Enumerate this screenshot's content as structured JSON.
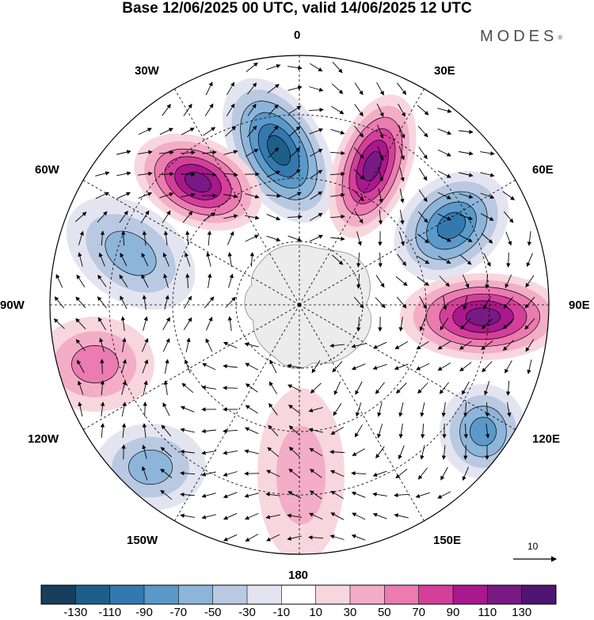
{
  "header": {
    "title": "Base 12/06/2025 00 UTC, valid 14/06/2025 12 UTC",
    "brand": "MODES",
    "brand_mark": "®"
  },
  "map": {
    "projection": "south-polar-stereographic",
    "longitude_labels": {
      "0": "0",
      "30E": "30E",
      "60E": "60E",
      "90E": "90E",
      "120E": "120E",
      "150E": "150E",
      "180": "180",
      "150W": "150W",
      "120W": "120W",
      "90W": "90W",
      "60W": "60W",
      "30W": "30W"
    },
    "field": "shaded anomaly field with wind streamlines and vectors",
    "anomaly_centers": [
      {
        "sign": "negative",
        "lon": "10W",
        "intensity": -130
      },
      {
        "sign": "positive",
        "lon": "20E",
        "intensity": 130
      },
      {
        "sign": "positive",
        "lon": "45W",
        "intensity": 130
      },
      {
        "sign": "negative",
        "lon": "50E",
        "intensity": -110
      },
      {
        "sign": "positive",
        "lon": "85E",
        "intensity": 130
      },
      {
        "sign": "negative",
        "lon": "75W",
        "intensity": -70
      },
      {
        "sign": "positive",
        "lon": "100W",
        "intensity": 70
      },
      {
        "sign": "negative",
        "lon": "120E",
        "intensity": -90
      },
      {
        "sign": "negative",
        "lon": "140W",
        "intensity": -70
      },
      {
        "sign": "positive",
        "lon": "175E",
        "intensity": 50
      }
    ],
    "land_color": "#ececec",
    "ocean_color": "#ffffff"
  },
  "vector_scale": {
    "label": "10"
  },
  "colorbar": {
    "labels": [
      "-130",
      "-110",
      "-90",
      "-70",
      "-50",
      "-30",
      "-10",
      "10",
      "30",
      "50",
      "70",
      "90",
      "110",
      "130"
    ],
    "colors": [
      "#173e5c",
      "#1e5f8a",
      "#3479ae",
      "#5a99c9",
      "#8cb5d9",
      "#b9c9e2",
      "#e4e4f1",
      "#ffffff",
      "#f8d6de",
      "#f3adc7",
      "#eb7bb0",
      "#d43f9a",
      "#a9188c",
      "#781a84",
      "#4f1570"
    ]
  }
}
